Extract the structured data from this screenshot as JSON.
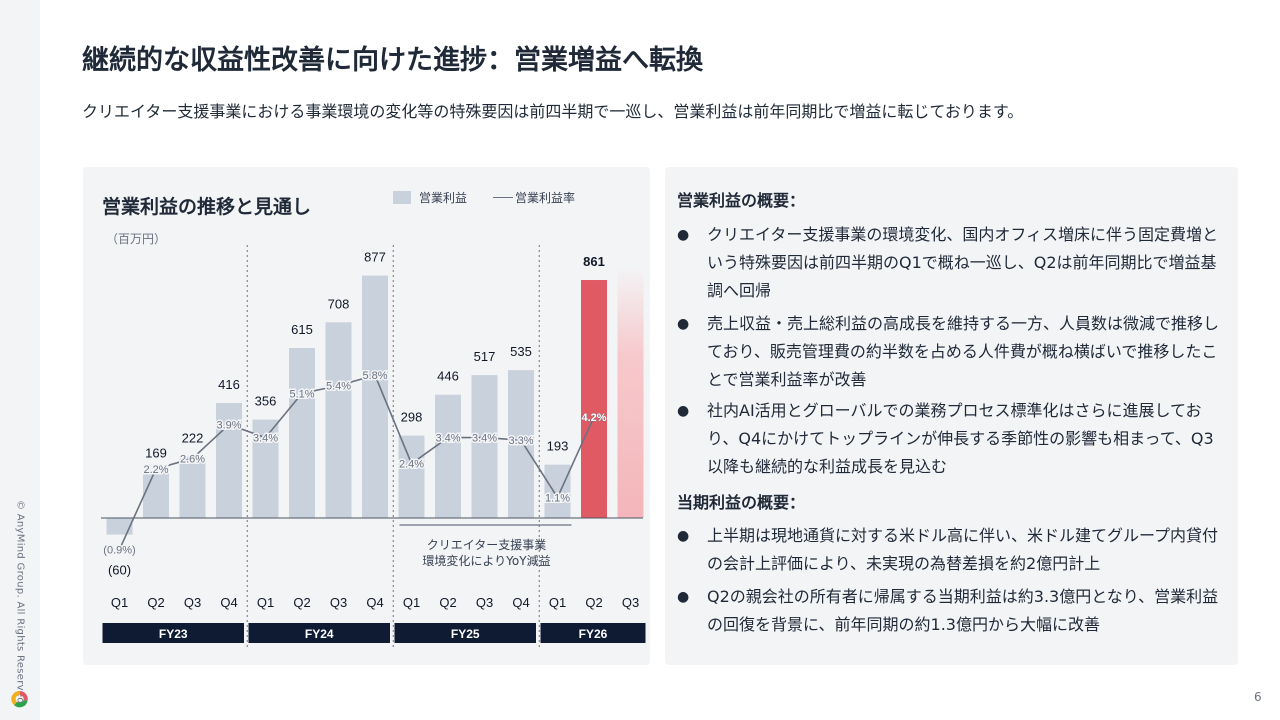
{
  "header": {
    "title": "継続的な収益性改善に向けた進捗：営業増益へ転換",
    "subtitle": "クリエイター支援事業における事業環境の変化等の特殊要因は前四半期で一巡し、営業利益は前年同期比で増益に転じております。"
  },
  "footer": {
    "copyright": "© AnyMind Group. All Rights Reserved.",
    "page_number": "6"
  },
  "chart_data": {
    "type": "bar",
    "title": "営業利益の推移と見通し",
    "unit": "（百万円）",
    "legend": {
      "bar": "営業利益",
      "line": "営業利益率"
    },
    "quarters": [
      "Q1",
      "Q2",
      "Q3",
      "Q4",
      "Q1",
      "Q2",
      "Q3",
      "Q4",
      "Q1",
      "Q2",
      "Q3",
      "Q4",
      "Q1",
      "Q2",
      "Q3"
    ],
    "values": [
      -60,
      169,
      222,
      416,
      356,
      615,
      708,
      877,
      298,
      446,
      517,
      535,
      193,
      861,
      null
    ],
    "value_labels": [
      "(60)",
      "169",
      "222",
      "416",
      "356",
      "615",
      "708",
      "877",
      "298",
      "446",
      "517",
      "535",
      "193",
      "861",
      ""
    ],
    "margin_pct": [
      -0.9,
      2.2,
      2.6,
      3.9,
      3.4,
      5.1,
      5.4,
      5.8,
      2.4,
      3.4,
      3.4,
      3.3,
      1.1,
      4.2,
      null
    ],
    "margin_labels": [
      "(0.9%)",
      "2.2%",
      "2.6%",
      "3.9%",
      "3.4%",
      "5.1%",
      "5.4%",
      "5.8%",
      "2.4%",
      "3.4%",
      "3.4%",
      "3.3%",
      "1.1%",
      "4.2%",
      ""
    ],
    "highlight_index": 13,
    "forecast_index": 14,
    "fiscal_years": [
      {
        "label": "FY23",
        "start": 0,
        "end": 3
      },
      {
        "label": "FY24",
        "start": 4,
        "end": 7
      },
      {
        "label": "FY25",
        "start": 8,
        "end": 11
      },
      {
        "label": "FY26",
        "start": 12,
        "end": 14
      }
    ],
    "annotation": {
      "line1": "クリエイター支援事業",
      "line2": "環境変化によりYoY減益"
    },
    "colors": {
      "bar": "#c8d1dc",
      "highlight": "#e05a63",
      "line": "#6b7280",
      "fy_bg": "#0f1a33"
    }
  },
  "summary": {
    "op_heading": "営業利益の概要：",
    "op_bullets": [
      "クリエイター支援事業の環境変化、国内オフィス増床に伴う固定費増という特殊要因は前四半期のQ1で概ね一巡し、Q2は前年同期比で増益基調へ回帰",
      "売上収益・売上総利益の高成長を維持する一方、人員数は微減で推移しており、販売管理費の約半数を占める人件費が概ね横ばいで推移したことで営業利益率が改善",
      "社内AI活用とグローバルでの業務プロセス標準化はさらに進展しており、Q4にかけてトップラインが伸長する季節性の影響も相まって、Q3以降も継続的な利益成長を見込む"
    ],
    "np_heading": "当期利益の概要：",
    "np_bullets": [
      "上半期は現地通貨に対する米ドル高に伴い、米ドル建てグループ内貸付の会計上評価により、未実現の為替差損を約2億円計上",
      "Q2の親会社の所有者に帰属する当期利益は約3.3億円となり、営業利益の回復を背景に、前年同期の約1.3億円から大幅に改善"
    ],
    "bullet_glyph": "●"
  }
}
